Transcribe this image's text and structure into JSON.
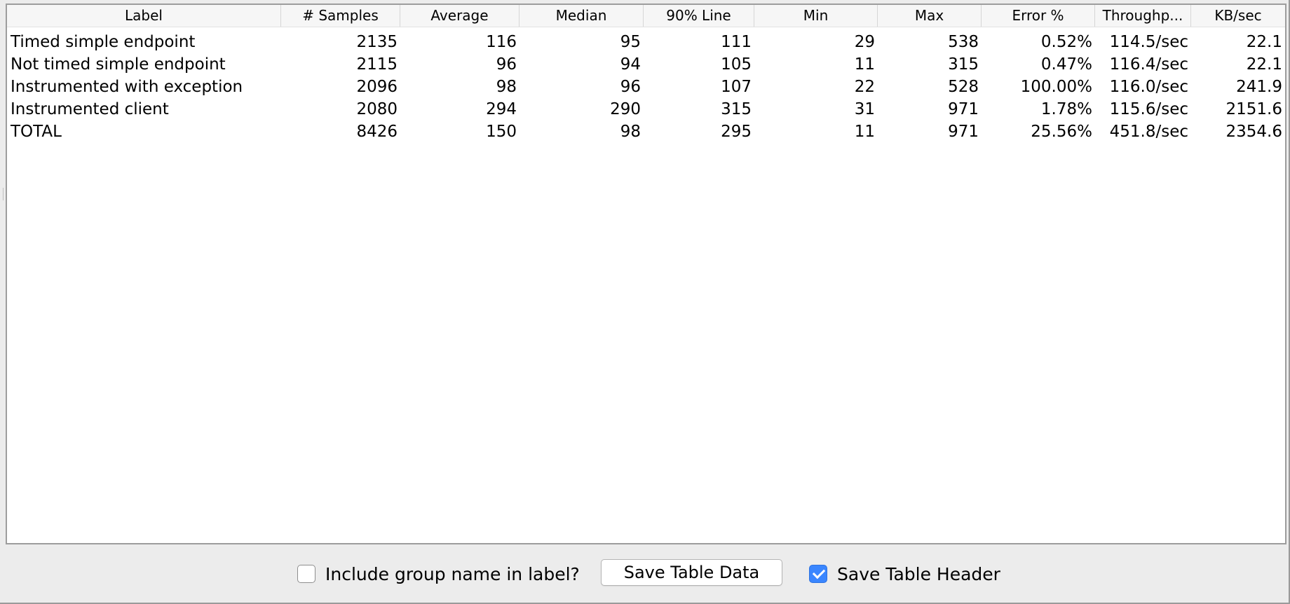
{
  "table": {
    "columns": [
      "Label",
      "# Samples",
      "Average",
      "Median",
      "90% Line",
      "Min",
      "Max",
      "Error %",
      "Throughp...",
      "KB/sec"
    ],
    "rows": [
      [
        "Timed simple endpoint",
        "2135",
        "116",
        "95",
        "111",
        "29",
        "538",
        "0.52%",
        "114.5/sec",
        "22.1"
      ],
      [
        "Not timed simple endpoint",
        "2115",
        "96",
        "94",
        "105",
        "11",
        "315",
        "0.47%",
        "116.4/sec",
        "22.1"
      ],
      [
        "Instrumented with exception",
        "2096",
        "98",
        "96",
        "107",
        "22",
        "528",
        "100.00%",
        "116.0/sec",
        "241.9"
      ],
      [
        "Instrumented client",
        "2080",
        "294",
        "290",
        "315",
        "31",
        "971",
        "1.78%",
        "115.6/sec",
        "2151.6"
      ],
      [
        "TOTAL",
        "8426",
        "150",
        "98",
        "295",
        "11",
        "971",
        "25.56%",
        "451.8/sec",
        "2354.6"
      ]
    ]
  },
  "controls": {
    "include_group_label": "Include group name in label?",
    "include_group_checked": false,
    "save_table_data_label": "Save Table Data",
    "save_table_header_label": "Save Table Header",
    "save_table_header_checked": true
  },
  "colors": {
    "checkbox_checked": "#3a86ff"
  }
}
